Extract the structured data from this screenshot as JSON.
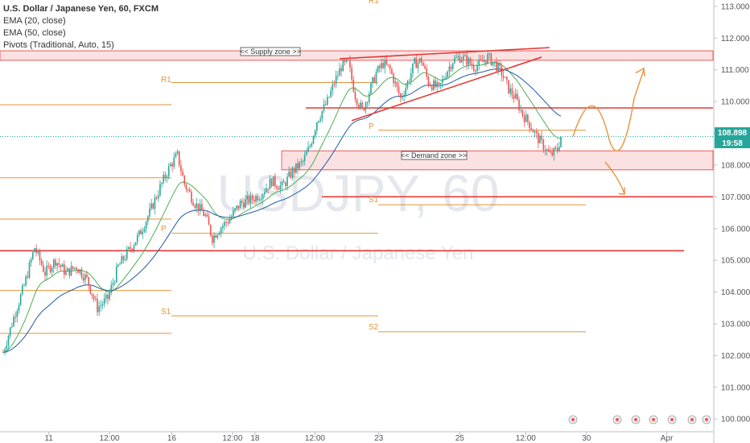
{
  "legend": {
    "symbol": "U.S. Dollar / Japanese Yen, 60, FXCM",
    "ema20": "EMA (20, close)",
    "ema50": "EMA (50, close)",
    "pivots": "Pivots (Traditional, Auto, 15)"
  },
  "watermark": {
    "ticker": "USDJPY, 60",
    "name": "U.S. Dollar / Japanese Yen"
  },
  "price_tag": {
    "value": "108.898",
    "timer": "19:58"
  },
  "zones": {
    "supply": "<< Supply zone >>",
    "demand": "<< Demand zone >>"
  },
  "pivot_labels": [
    "R1",
    "P",
    "S1",
    "P",
    "S1",
    "S2",
    "R1"
  ],
  "colors": {
    "bull": "#26a69a",
    "bear": "#ef5350",
    "ema20": "#4caf50",
    "ema50": "#1e5aa8",
    "pivot": "#e8923a",
    "level": "#e53935",
    "zone": "#f8c8c8",
    "price": "#26a69a"
  },
  "chart_data": {
    "type": "candlestick",
    "symbol": "USDJPY",
    "timeframe": "60",
    "x_tick_labels": [
      "11",
      "12:00",
      "16",
      "12:00",
      "18",
      "12:00",
      "23",
      "25",
      "12:00",
      "30",
      "Apr"
    ],
    "y_ticks": [
      100.0,
      101.0,
      102.0,
      103.0,
      104.0,
      105.0,
      106.0,
      107.0,
      108.0,
      109.0,
      110.0,
      111.0,
      112.0,
      113.0
    ],
    "y_tick_labels": [
      "100.000",
      "101.000",
      "102.000",
      "103.000",
      "104.000",
      "105.000",
      "106.000",
      "107.000",
      "108.000",
      "109.000",
      "110.000",
      "111.000",
      "112.000",
      "113.000"
    ],
    "ylim": [
      99.6,
      113.2
    ],
    "close_path": [
      [
        0,
        102.1
      ],
      [
        6,
        103.2
      ],
      [
        12,
        104.2
      ],
      [
        18,
        105.4
      ],
      [
        24,
        104.6
      ],
      [
        30,
        105.0
      ],
      [
        36,
        104.6
      ],
      [
        42,
        104.8
      ],
      [
        48,
        104.4
      ],
      [
        54,
        103.5
      ],
      [
        60,
        103.8
      ],
      [
        66,
        104.8
      ],
      [
        72,
        105.3
      ],
      [
        78,
        105.8
      ],
      [
        84,
        106.5
      ],
      [
        90,
        107.3
      ],
      [
        96,
        108.0
      ],
      [
        100,
        108.3
      ],
      [
        104,
        107.4
      ],
      [
        110,
        106.8
      ],
      [
        116,
        106.4
      ],
      [
        120,
        105.7
      ],
      [
        124,
        106.0
      ],
      [
        130,
        106.3
      ],
      [
        136,
        106.8
      ],
      [
        142,
        106.9
      ],
      [
        148,
        107.1
      ],
      [
        154,
        107.5
      ],
      [
        160,
        107.3
      ],
      [
        166,
        107.8
      ],
      [
        172,
        108.1
      ],
      [
        176,
        108.6
      ],
      [
        180,
        109.4
      ],
      [
        186,
        110.0
      ],
      [
        190,
        110.6
      ],
      [
        194,
        111.1
      ],
      [
        198,
        111.2
      ],
      [
        202,
        110.2
      ],
      [
        206,
        109.7
      ],
      [
        210,
        110.3
      ],
      [
        214,
        110.9
      ],
      [
        218,
        111.2
      ],
      [
        222,
        111.0
      ],
      [
        228,
        110.1
      ],
      [
        232,
        110.6
      ],
      [
        236,
        111.2
      ],
      [
        240,
        111.3
      ],
      [
        244,
        110.6
      ],
      [
        250,
        110.4
      ],
      [
        254,
        110.9
      ],
      [
        258,
        111.3
      ],
      [
        262,
        111.4
      ],
      [
        266,
        111.3
      ],
      [
        270,
        111.1
      ],
      [
        274,
        111.2
      ],
      [
        278,
        111.4
      ],
      [
        282,
        111.2
      ],
      [
        286,
        110.9
      ],
      [
        290,
        110.4
      ],
      [
        294,
        110.1
      ],
      [
        298,
        109.6
      ],
      [
        302,
        109.3
      ],
      [
        306,
        108.9
      ],
      [
        310,
        108.6
      ],
      [
        314,
        108.3
      ],
      [
        318,
        108.5
      ],
      [
        320,
        108.9
      ]
    ],
    "supply_zone": [
      111.3,
      111.6
    ],
    "demand_zone": [
      107.85,
      108.45
    ],
    "horizontal_levels": [
      109.8,
      107.0,
      105.3
    ],
    "price": 108.898,
    "x_tick_positions": [
      0.065,
      0.146,
      0.229,
      0.31,
      0.34,
      0.42,
      0.505,
      0.613,
      0.701,
      0.782,
      0.889
    ],
    "annotations": {
      "supply_zone_label": "<< Supply zone >>",
      "demand_zone_label": "<< Demand zone >>",
      "projections": [
        "bullish bounce to ~111.0",
        "bearish drop to ~107.1"
      ]
    }
  }
}
